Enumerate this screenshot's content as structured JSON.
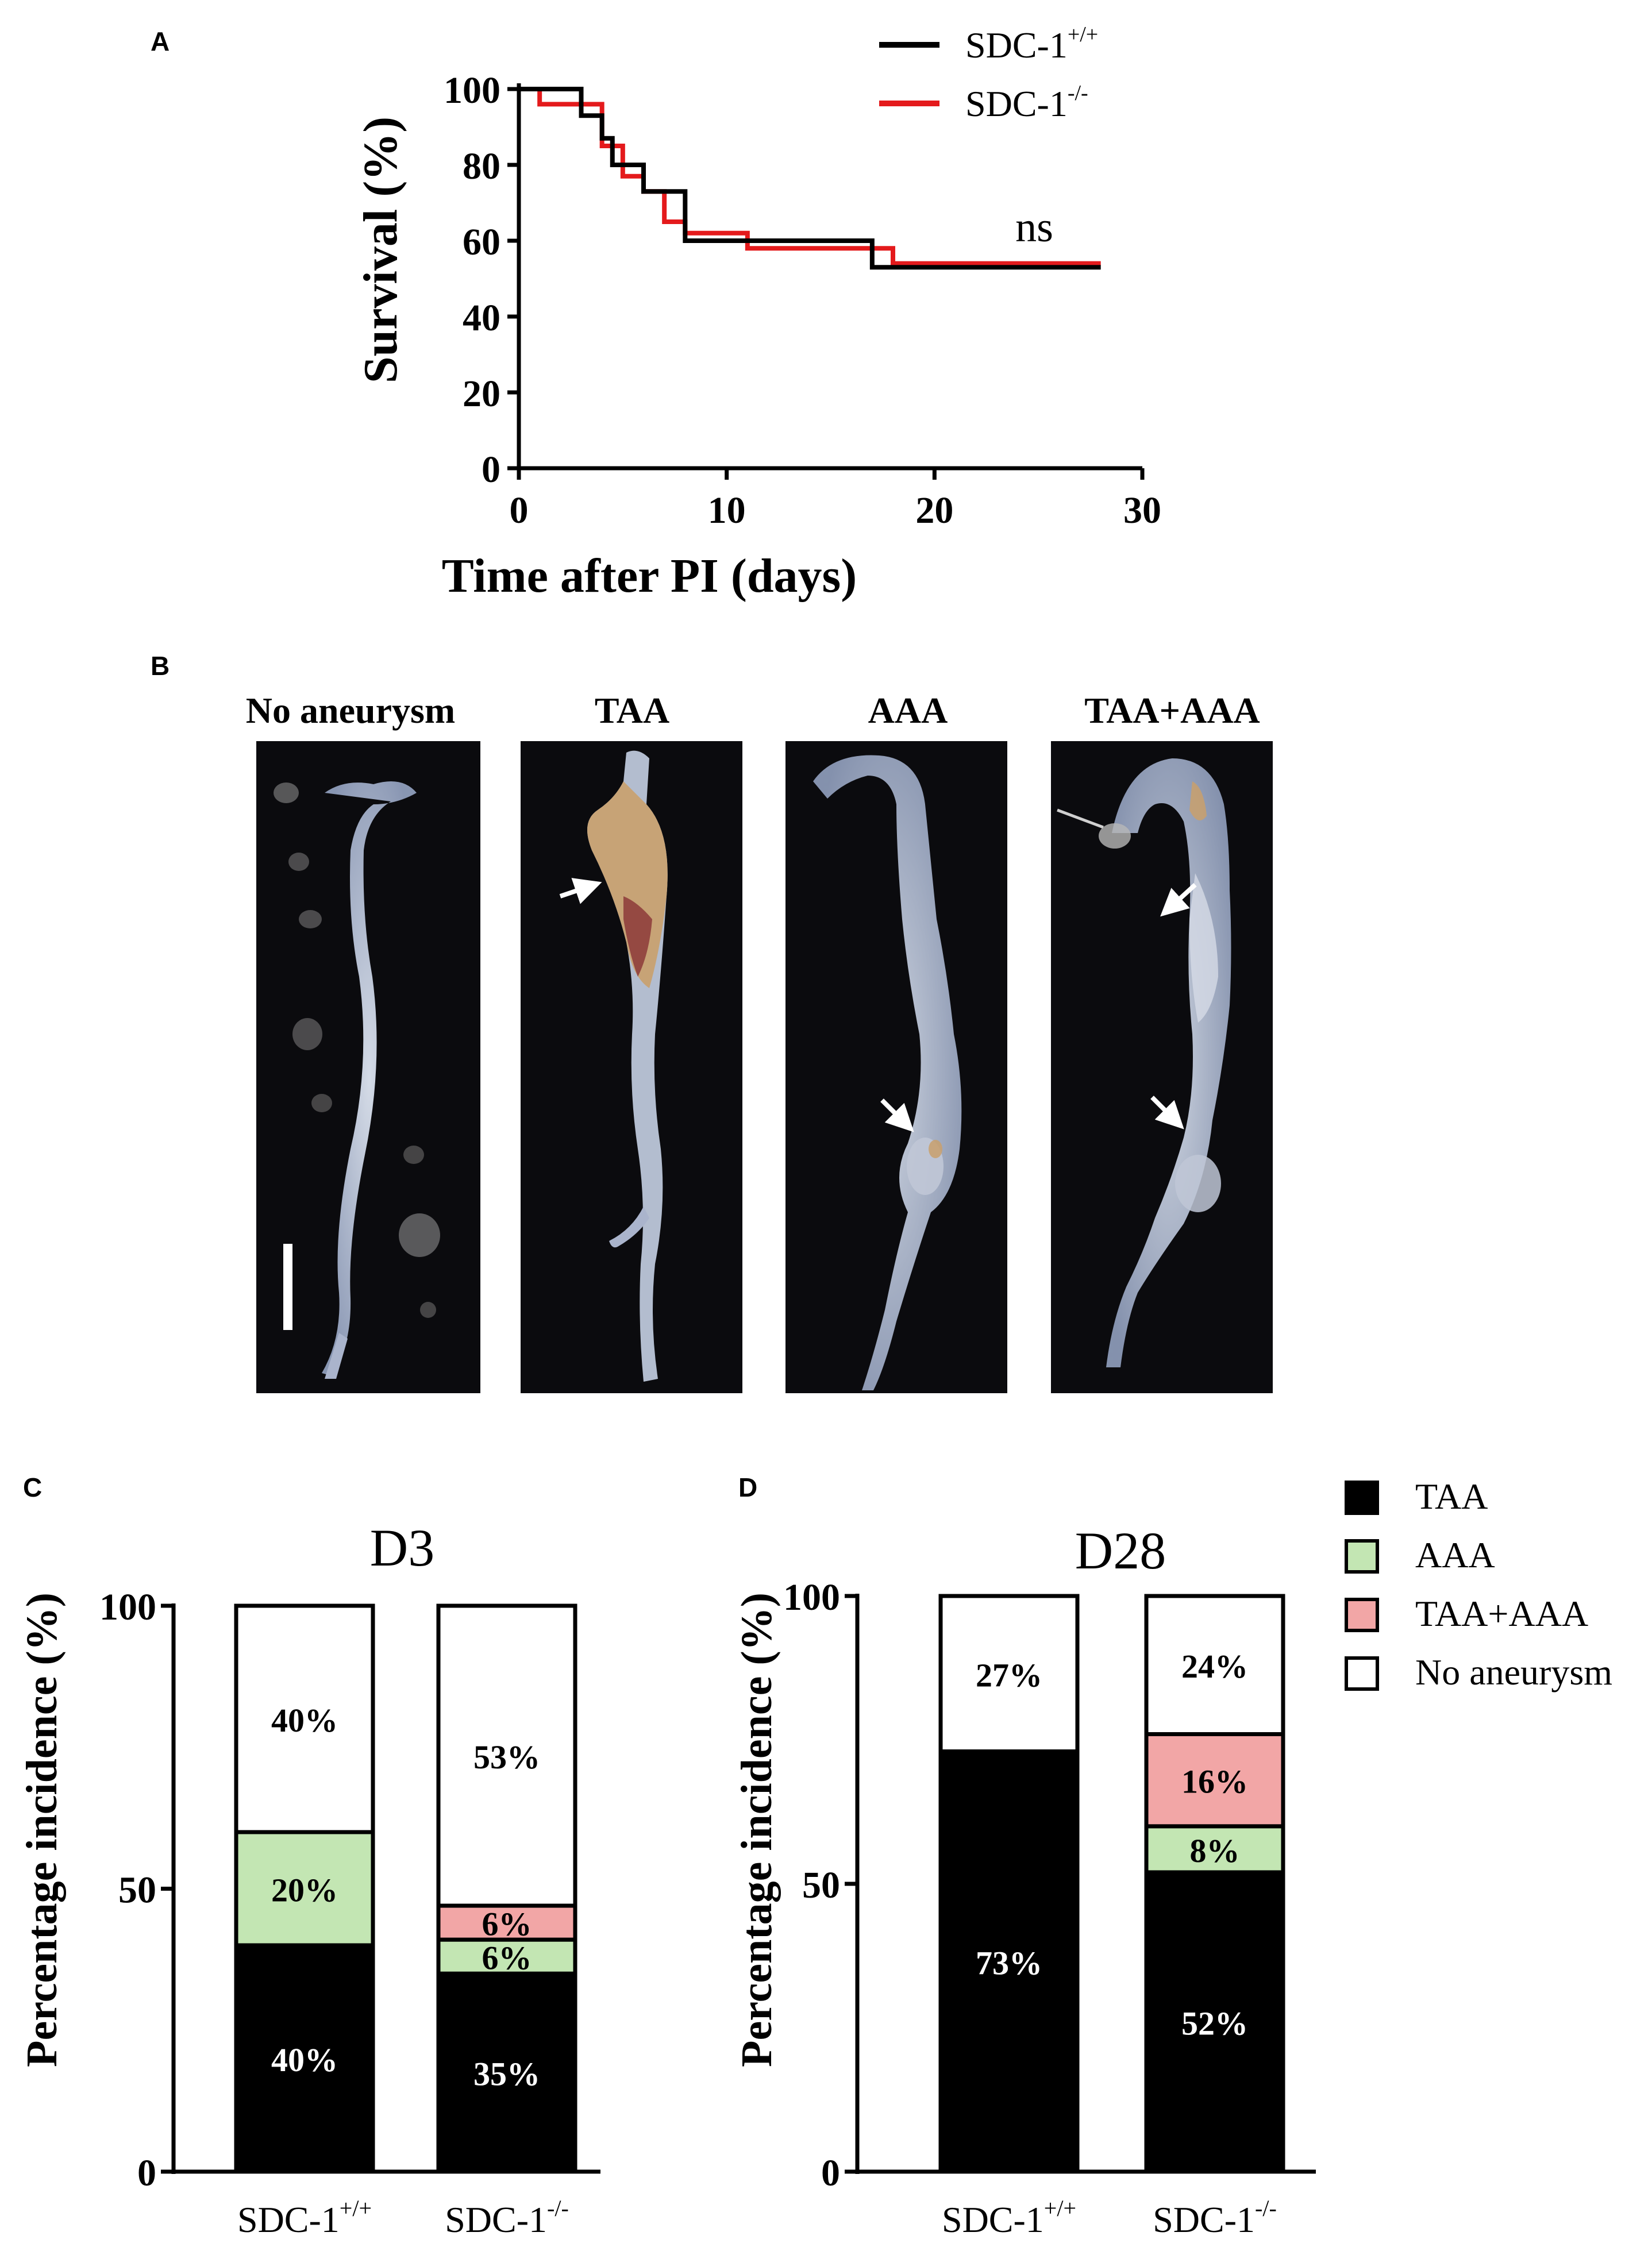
{
  "panels": {
    "a": "A",
    "b": "B",
    "c": "C",
    "d": "D"
  },
  "colors": {
    "wt": "#000000",
    "ko": "#e41a1c",
    "TAA": "#000000",
    "AAA": "#c3e6b3",
    "TAA+AAA": "#f2a6a6",
    "No aneurysm": "#ffffff"
  },
  "legend_a": {
    "wt_base": "SDC-1",
    "wt_sup": "+/+",
    "ko_base": "SDC-1",
    "ko_sup": "-/-"
  },
  "photos": {
    "labels": [
      "No aneurysm",
      "TAA",
      "AAA",
      "TAA+AAA"
    ]
  },
  "stack_legend": [
    "TAA",
    "AAA",
    "TAA+AAA",
    "No aneurysm"
  ],
  "chart_data": [
    {
      "type": "line",
      "subtype": "kaplan-meier step",
      "xlabel": "Time after PI (days)",
      "ylabel": "Survival (%)",
      "xlim": [
        0,
        30
      ],
      "ylim": [
        0,
        100
      ],
      "xticks": [
        0,
        10,
        20,
        30
      ],
      "yticks": [
        0,
        20,
        40,
        60,
        80,
        100
      ],
      "annotation": "ns",
      "series": [
        {
          "name": "SDC-1+/+",
          "color": "#000000",
          "x": [
            0,
            3,
            4,
            4.5,
            5,
            6,
            7,
            8,
            17,
            28
          ],
          "y": [
            100,
            93,
            87,
            80,
            80,
            73,
            73,
            60,
            53,
            53
          ]
        },
        {
          "name": "SDC-1-/-",
          "color": "#e41a1c",
          "x": [
            0,
            1,
            4,
            5,
            6,
            7,
            8,
            11,
            18,
            28
          ],
          "y": [
            100,
            96,
            85,
            77,
            73,
            65,
            62,
            58,
            54,
            54
          ]
        }
      ]
    },
    {
      "type": "bar",
      "subtype": "stacked percent",
      "title": "D3",
      "ylabel": "Percentage incidence (%)",
      "ylim": [
        0,
        100
      ],
      "yticks": [
        0,
        50,
        100
      ],
      "categories": [
        {
          "base": "SDC-1",
          "sup": "+/+"
        },
        {
          "base": "SDC-1",
          "sup": "-/-"
        }
      ],
      "series": [
        {
          "name": "TAA",
          "values": [
            40,
            35
          ],
          "labels": [
            "40%",
            "35%"
          ]
        },
        {
          "name": "AAA",
          "values": [
            20,
            6
          ],
          "labels": [
            "20%",
            "6%"
          ]
        },
        {
          "name": "TAA+AAA",
          "values": [
            0,
            6
          ],
          "labels": [
            "",
            "6%"
          ]
        },
        {
          "name": "No aneurysm",
          "values": [
            40,
            53
          ],
          "labels": [
            "40%",
            "53%"
          ]
        }
      ]
    },
    {
      "type": "bar",
      "subtype": "stacked percent",
      "title": "D28",
      "ylabel": "Percentage incidence (%)",
      "ylim": [
        0,
        100
      ],
      "yticks": [
        0,
        50,
        100
      ],
      "categories": [
        {
          "base": "SDC-1",
          "sup": "+/+"
        },
        {
          "base": "SDC-1",
          "sup": "-/-"
        }
      ],
      "series": [
        {
          "name": "TAA",
          "values": [
            73,
            52
          ],
          "labels": [
            "73%",
            "52%"
          ]
        },
        {
          "name": "AAA",
          "values": [
            0,
            8
          ],
          "labels": [
            "",
            "8%"
          ]
        },
        {
          "name": "TAA+AAA",
          "values": [
            0,
            16
          ],
          "labels": [
            "",
            "16%"
          ]
        },
        {
          "name": "No aneurysm",
          "values": [
            27,
            24
          ],
          "labels": [
            "27%",
            "24%"
          ]
        }
      ]
    }
  ]
}
